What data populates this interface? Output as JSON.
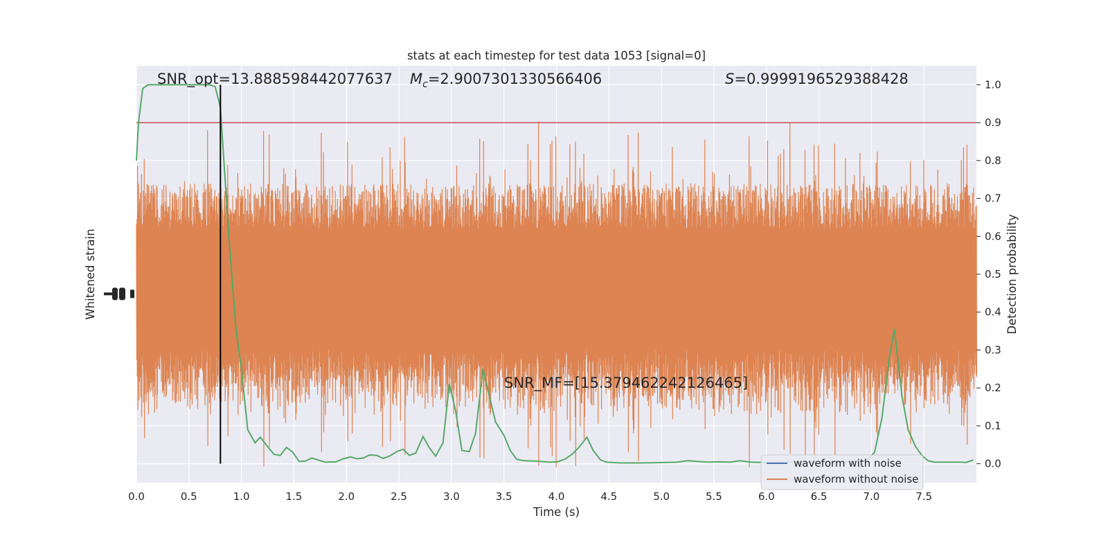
{
  "chart_data": {
    "type": "line",
    "title": "stats at each timestep for test data 1053 [signal=0]",
    "xlabel": "Time (s)",
    "ylabel_left": "Whitened strain",
    "ylabel_right": "Detection probability",
    "xlim": [
      0,
      8
    ],
    "ylim_right": [
      -0.05,
      1.05
    ],
    "x_ticks": [
      "0.0",
      "0.5",
      "1.0",
      "1.5",
      "2.0",
      "2.5",
      "3.0",
      "3.5",
      "4.0",
      "4.5",
      "5.0",
      "5.5",
      "6.0",
      "6.5",
      "7.0",
      "7.5"
    ],
    "y_ticks_right": [
      "0.0",
      "0.1",
      "0.2",
      "0.3",
      "0.4",
      "0.5",
      "0.6",
      "0.7",
      "0.8",
      "0.9",
      "1.0"
    ],
    "grid": true,
    "legend_position": "lower-right",
    "legend": [
      {
        "label": "waveform with noise",
        "color": "#4c72b0"
      },
      {
        "label": "waveform without noise",
        "color": "#dd8452"
      }
    ],
    "annotations": {
      "snr_opt": "SNR_opt=13.888598442077637",
      "mc_symbol": "M",
      "mc_sub": "c",
      "mc_value": "=2.9007301330566406",
      "s_symbol": "S",
      "s_value": "=0.9999196529388428",
      "snr_mf": "SNR_MF=[15.379462242126465]"
    },
    "threshold": {
      "y": 0.9,
      "color": "#c44e52"
    },
    "marker_line": {
      "x": 0.8,
      "color": "#000000"
    },
    "series": [
      {
        "role": "detection",
        "color": "#55a868",
        "points": [
          [
            0.0,
            0.8
          ],
          [
            0.02,
            0.9
          ],
          [
            0.06,
            0.99
          ],
          [
            0.11,
            1.0
          ],
          [
            0.3,
            1.0
          ],
          [
            0.55,
            1.0
          ],
          [
            0.7,
            1.0
          ],
          [
            0.75,
            0.995
          ],
          [
            0.8,
            0.94
          ],
          [
            0.88,
            0.6
          ],
          [
            0.95,
            0.35
          ],
          [
            1.0,
            0.25
          ],
          [
            1.06,
            0.09
          ],
          [
            1.13,
            0.055
          ],
          [
            1.18,
            0.07
          ],
          [
            1.25,
            0.045
          ],
          [
            1.31,
            0.025
          ],
          [
            1.37,
            0.022
          ],
          [
            1.43,
            0.043
          ],
          [
            1.49,
            0.03
          ],
          [
            1.55,
            0.006
          ],
          [
            1.61,
            0.007
          ],
          [
            1.67,
            0.015
          ],
          [
            1.73,
            0.01
          ],
          [
            1.8,
            0.004
          ],
          [
            1.9,
            0.005
          ],
          [
            1.97,
            0.013
          ],
          [
            2.04,
            0.018
          ],
          [
            2.1,
            0.013
          ],
          [
            2.16,
            0.015
          ],
          [
            2.22,
            0.023
          ],
          [
            2.29,
            0.022
          ],
          [
            2.35,
            0.014
          ],
          [
            2.41,
            0.02
          ],
          [
            2.48,
            0.032
          ],
          [
            2.54,
            0.038
          ],
          [
            2.6,
            0.022
          ],
          [
            2.66,
            0.028
          ],
          [
            2.73,
            0.072
          ],
          [
            2.79,
            0.042
          ],
          [
            2.85,
            0.02
          ],
          [
            2.92,
            0.055
          ],
          [
            2.98,
            0.21
          ],
          [
            3.04,
            0.14
          ],
          [
            3.1,
            0.035
          ],
          [
            3.17,
            0.032
          ],
          [
            3.23,
            0.08
          ],
          [
            3.3,
            0.25
          ],
          [
            3.36,
            0.18
          ],
          [
            3.42,
            0.11
          ],
          [
            3.5,
            0.075
          ],
          [
            3.56,
            0.035
          ],
          [
            3.62,
            0.012
          ],
          [
            3.69,
            0.008
          ],
          [
            3.8,
            0.007
          ],
          [
            3.93,
            0.004
          ],
          [
            4.01,
            0.005
          ],
          [
            4.08,
            0.012
          ],
          [
            4.15,
            0.025
          ],
          [
            4.22,
            0.045
          ],
          [
            4.29,
            0.07
          ],
          [
            4.35,
            0.035
          ],
          [
            4.42,
            0.01
          ],
          [
            4.48,
            0.004
          ],
          [
            4.6,
            0.002
          ],
          [
            4.8,
            0.002
          ],
          [
            5.0,
            0.003
          ],
          [
            5.15,
            0.004
          ],
          [
            5.25,
            0.008
          ],
          [
            5.35,
            0.006
          ],
          [
            5.45,
            0.004
          ],
          [
            5.55,
            0.005
          ],
          [
            5.65,
            0.004
          ],
          [
            5.75,
            0.008
          ],
          [
            5.85,
            0.004
          ],
          [
            6.0,
            0.003
          ],
          [
            6.2,
            0.004
          ],
          [
            6.5,
            0.004
          ],
          [
            6.8,
            0.005
          ],
          [
            6.95,
            0.008
          ],
          [
            7.03,
            0.03
          ],
          [
            7.1,
            0.12
          ],
          [
            7.17,
            0.28
          ],
          [
            7.22,
            0.355
          ],
          [
            7.29,
            0.18
          ],
          [
            7.35,
            0.09
          ],
          [
            7.42,
            0.045
          ],
          [
            7.48,
            0.022
          ],
          [
            7.54,
            0.008
          ],
          [
            7.6,
            0.004
          ],
          [
            7.75,
            0.004
          ],
          [
            7.85,
            0.004
          ],
          [
            7.9,
            0.003
          ],
          [
            7.97,
            0.01
          ]
        ]
      }
    ]
  }
}
